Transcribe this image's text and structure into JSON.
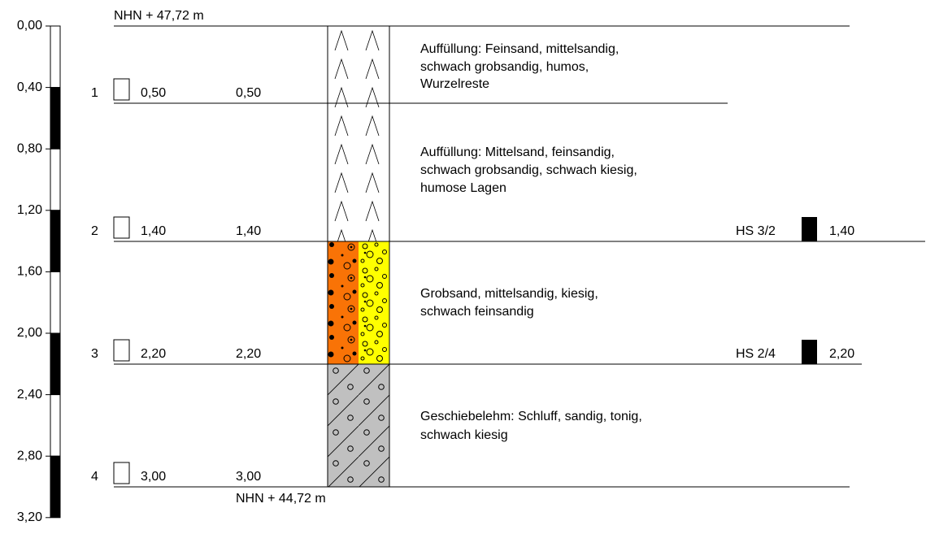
{
  "elevation_top": "NHN + 47,72 m",
  "elevation_bottom": "NHN + 44,72 m",
  "scale": [
    "0,00",
    "0,40",
    "0,80",
    "1,20",
    "1,60",
    "2,00",
    "2,40",
    "2,80",
    "3,20"
  ],
  "samples": [
    {
      "number": "1",
      "depth": "0,50",
      "base": "0,50"
    },
    {
      "number": "2",
      "depth": "1,40",
      "base": "1,40"
    },
    {
      "number": "3",
      "depth": "2,20",
      "base": "2,20"
    },
    {
      "number": "4",
      "depth": "3,00",
      "base": "3,00"
    }
  ],
  "layers": [
    {
      "description": [
        "Auffüllung: Feinsand, mittelsandig,",
        "schwach grobsandig, humos,",
        "Wurzelreste"
      ]
    },
    {
      "description": [
        "Auffüllung: Mittelsand, feinsandig,",
        "schwach grobsandig, schwach kiesig,",
        "humose Lagen"
      ]
    },
    {
      "description": [
        "Grobsand, mittelsandig, kiesig,",
        "schwach feinsandig"
      ]
    },
    {
      "description": [
        "Geschiebelehm: Schluff, sandig, tonig,",
        "schwach kiesig"
      ]
    }
  ],
  "hs_samples": [
    {
      "label": "HS 3/2",
      "depth": "1,40"
    },
    {
      "label": "HS 2/4",
      "depth": "2,20"
    }
  ]
}
